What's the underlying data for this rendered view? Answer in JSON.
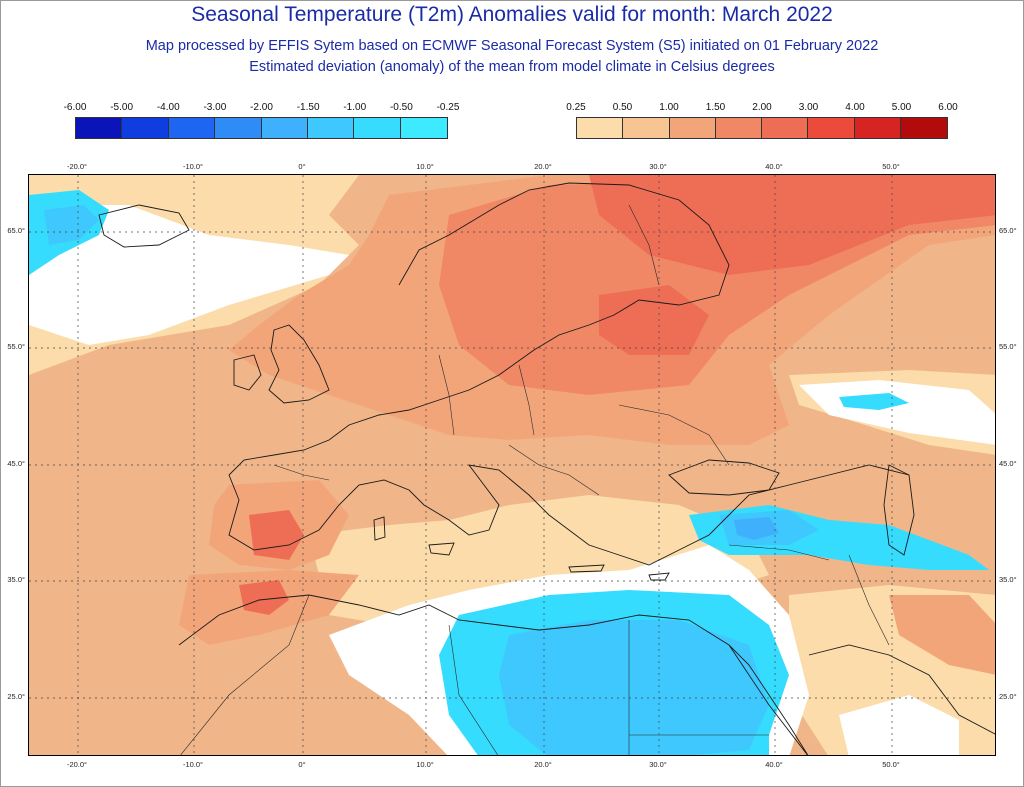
{
  "title": {
    "main": "Seasonal Temperature (T2m) Anomalies valid for month: March 2022",
    "sub1": "Map processed by EFFIS Sytem based on ECMWF Seasonal Forecast System (S5) initiated on 01 February 2022",
    "sub2": "Estimated deviation (anomaly) of the mean from model climate in Celsius degrees"
  },
  "legend_negative": {
    "labels": [
      "-6.00",
      "-5.00",
      "-4.00",
      "-3.00",
      "-2.00",
      "-1.50",
      "-1.00",
      "-0.50",
      "-0.25"
    ],
    "colors": [
      "#0a14b8",
      "#0f3ee0",
      "#1e66f2",
      "#2f8cf7",
      "#3fb0fb",
      "#3fc8fd",
      "#36dcfe",
      "#3deaff"
    ]
  },
  "legend_positive": {
    "labels": [
      "0.25",
      "0.50",
      "1.00",
      "1.50",
      "2.00",
      "3.00",
      "4.00",
      "5.00",
      "6.00"
    ],
    "colors": [
      "#fbdcaa",
      "#f6c592",
      "#f3a57a",
      "#f08866",
      "#ee6e55",
      "#ec4a3a",
      "#d62422",
      "#b30b0b"
    ]
  },
  "map": {
    "lon_labels": [
      "-20.0°",
      "-10.0°",
      "0°",
      "10.0°",
      "20.0°",
      "30.0°",
      "40.0°",
      "50.0°"
    ],
    "lat_labels": [
      "65.0°",
      "55.0°",
      "45.0°",
      "35.0°",
      "25.0°"
    ]
  }
}
